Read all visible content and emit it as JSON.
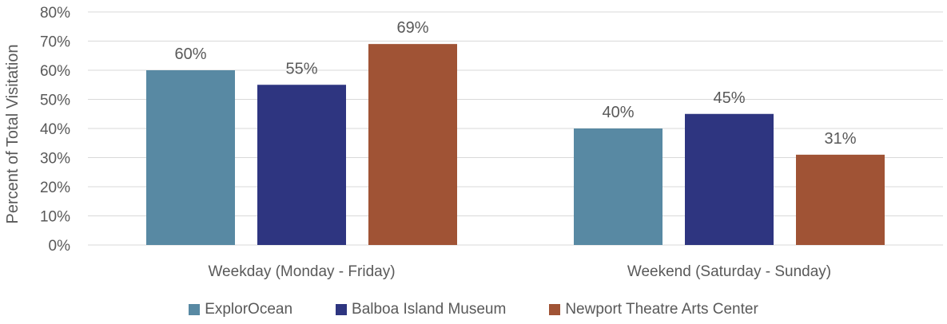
{
  "chart_data": {
    "type": "bar",
    "categories": [
      "Weekday (Monday - Friday)",
      "Weekend (Saturday - Sunday)"
    ],
    "series": [
      {
        "name": "ExplorOcean",
        "values": [
          60,
          40
        ],
        "labels": [
          "60%",
          "40%"
        ],
        "color": "#5889a3"
      },
      {
        "name": "Balboa Island Museum",
        "values": [
          55,
          45
        ],
        "labels": [
          "55%",
          "45%"
        ],
        "color": "#2e3580"
      },
      {
        "name": "Newport Theatre Arts Center",
        "values": [
          69,
          31
        ],
        "labels": [
          "69%",
          "31%"
        ],
        "color": "#a05335"
      }
    ],
    "ylabel": "Percent of Total Visitation",
    "ylim": [
      0,
      80
    ],
    "yticks": [
      0,
      10,
      20,
      30,
      40,
      50,
      60,
      70,
      80
    ],
    "ytick_labels": [
      "0%",
      "10%",
      "20%",
      "30%",
      "40%",
      "50%",
      "60%",
      "70%",
      "80%"
    ],
    "grid": true,
    "legend_position": "bottom"
  }
}
